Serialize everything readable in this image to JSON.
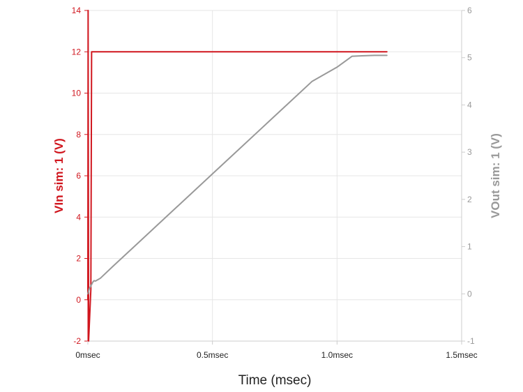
{
  "chart_data": {
    "type": "line",
    "xlabel": "Time (msec)",
    "x_ticks": [
      0,
      0.5,
      1.0,
      1.5
    ],
    "x_tick_labels": [
      "0msec",
      "0.5msec",
      "1.0msec",
      "1.5msec"
    ],
    "xlim": [
      0,
      1.5
    ],
    "y_left": {
      "label": "VIn sim: 1 (V)",
      "ylim": [
        -2,
        14
      ],
      "ticks": [
        -2,
        0,
        2,
        4,
        6,
        8,
        10,
        12,
        14
      ],
      "color": "#d0161e"
    },
    "y_right": {
      "label": "VOut sim: 1 (V)",
      "ylim": [
        -1,
        6
      ],
      "ticks": [
        -1,
        0,
        1,
        2,
        3,
        4,
        5,
        6
      ],
      "color": "#999999"
    },
    "grid": true,
    "series": [
      {
        "name": "VIn sim: 1",
        "axis": "left",
        "color": "#d0161e",
        "x": [
          0,
          0.001,
          0.003,
          0.012,
          0.015,
          0.5,
          1.0,
          1.2
        ],
        "y": [
          0,
          14,
          -2,
          0.5,
          12,
          12,
          12,
          12
        ]
      },
      {
        "name": "VOut sim: 1",
        "axis": "right",
        "color": "#999999",
        "x": [
          0,
          0.005,
          0.02,
          0.025,
          0.03,
          0.04,
          0.05,
          0.06,
          0.1,
          0.2,
          0.3,
          0.4,
          0.5,
          0.6,
          0.7,
          0.8,
          0.9,
          1.0,
          1.06,
          1.1,
          1.15,
          1.2
        ],
        "y": [
          0,
          0.1,
          0.25,
          0.28,
          0.27,
          0.3,
          0.33,
          0.38,
          0.58,
          1.07,
          1.56,
          2.05,
          2.54,
          3.03,
          3.52,
          4.01,
          4.5,
          4.8,
          5.03,
          5.04,
          5.05,
          5.05
        ]
      }
    ]
  }
}
